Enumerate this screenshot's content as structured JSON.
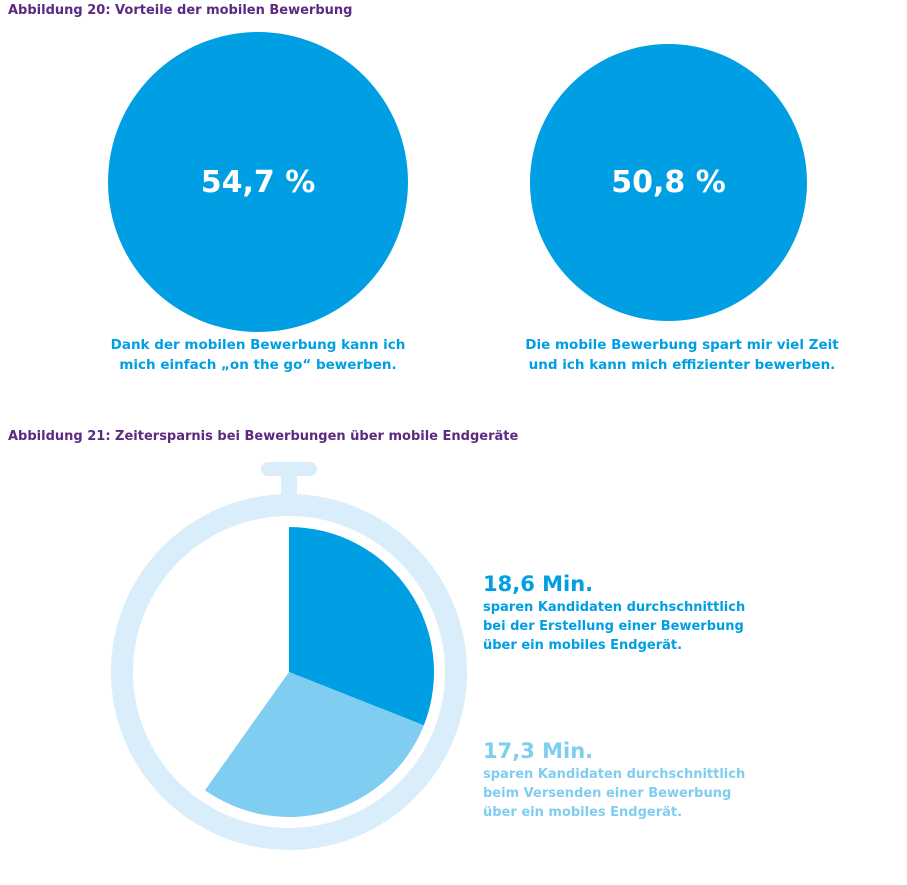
{
  "figure20": {
    "title": "Abbildung 20: Vorteile der mobilen Bewerbung",
    "items": [
      {
        "value_label": "54,7 %",
        "caption_lines": [
          "Dank der mobilen Bewerbung kann ich",
          "mich einfach „on the go“ bewerben."
        ]
      },
      {
        "value_label": "50,8 %",
        "caption_lines": [
          "Die mobile Bewerbung spart mir viel Zeit",
          "und ich kann mich effizienter bewerben."
        ]
      }
    ]
  },
  "figure21": {
    "title": "Abbildung 21: Zeitersparnis bei Bewerbungen über mobile Endgeräte",
    "stats": [
      {
        "value_label": "18,6 Min.",
        "lines": [
          "sparen Kandidaten durchschnittlich",
          "bei der Erstellung einer Bewerbung",
          "über ein mobiles Endgerät."
        ]
      },
      {
        "value_label": "17,3 Min.",
        "lines": [
          "sparen Kandidaten durchschnittlich",
          "beim Versenden einer Bewerbung",
          "über ein mobiles Endgerät."
        ]
      }
    ]
  },
  "chart_data": [
    {
      "type": "pie",
      "title": "Abbildung 20: Vorteile der mobilen Bewerbung",
      "categories": [
        "Dank der mobilen Bewerbung kann ich mich einfach „on the go“ bewerben.",
        "Die mobile Bewerbung spart mir viel Zeit und ich kann mich effizienter bewerben."
      ],
      "values": [
        54.7,
        50.8
      ],
      "unit": "%"
    },
    {
      "type": "pie",
      "title": "Abbildung 21: Zeitersparnis bei Bewerbungen über mobile Endgeräte",
      "categories": [
        "Erstellung einer Bewerbung",
        "Versenden einer Bewerbung"
      ],
      "values": [
        18.6,
        17.3
      ],
      "unit": "Min.",
      "full_circle": 60
    }
  ],
  "colors": {
    "title": "#5c2a80",
    "primary": "#009fe3",
    "secondary": "#7fcdf0",
    "ring": "#d9eefa"
  }
}
